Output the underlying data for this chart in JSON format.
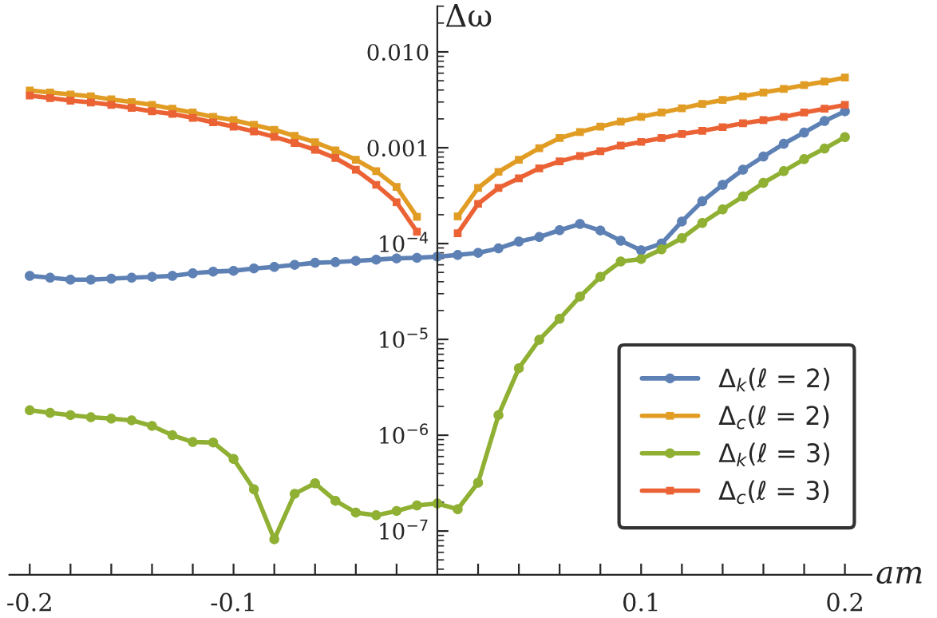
{
  "chart_data": {
    "type": "line",
    "xlabel": "am",
    "ylabel": "Δω",
    "log": "y",
    "x": [
      -0.2,
      -0.19,
      -0.18,
      -0.17,
      -0.16,
      -0.15,
      -0.14,
      -0.13,
      -0.12,
      -0.11,
      -0.1,
      -0.09,
      -0.08,
      -0.07,
      -0.06,
      -0.05,
      -0.04,
      -0.03,
      -0.02,
      -0.01,
      0,
      0.01,
      0.02,
      0.03,
      0.04,
      0.05,
      0.06,
      0.07,
      0.08,
      0.09,
      0.1,
      0.11,
      0.12,
      0.13,
      0.14,
      0.15,
      0.16,
      0.17,
      0.18,
      0.19,
      0.2
    ],
    "xlim": [
      -0.21,
      0.213
    ],
    "ylim": [
      3.5e-08,
      0.03
    ],
    "xticks": [
      -0.2,
      {
        "value": -0.18,
        "label": null
      },
      {
        "value": -0.16,
        "label": null
      },
      {
        "value": -0.14,
        "label": null
      },
      {
        "value": -0.12,
        "label": null
      },
      -0.1,
      {
        "value": -0.08,
        "label": null
      },
      {
        "value": -0.06,
        "label": null
      },
      {
        "value": -0.04,
        "label": null
      },
      {
        "value": -0.02,
        "label": null
      },
      {
        "value": 0.02,
        "label": null
      },
      {
        "value": 0.04,
        "label": null
      },
      {
        "value": 0.06,
        "label": null
      },
      {
        "value": 0.08,
        "label": null
      },
      0.1,
      {
        "value": 0.12,
        "label": null
      },
      {
        "value": 0.14,
        "label": null
      },
      {
        "value": 0.16,
        "label": null
      },
      {
        "value": 0.18,
        "label": null
      },
      0.2
    ],
    "yticks": [
      {
        "value": 1e-07,
        "label": "10$^{−7}$"
      },
      {
        "value": 1e-06,
        "label": "10$^{−6}$"
      },
      {
        "value": 1e-05,
        "label": "10$^{−5}$"
      },
      {
        "value": 0.0001,
        "label": "10$^{−4}$"
      },
      {
        "value": 0.001,
        "label": "0.001"
      },
      {
        "value": 0.01,
        "label": "0.010"
      }
    ],
    "legend": "bottom right",
    "grid": false,
    "series": [
      {
        "name": "Δ$_{k}$(ℓ = 2)",
        "color": "#5e81b5",
        "marker": "circle",
        "values": [
          4.6e-05,
          4.4e-05,
          4.2e-05,
          4.2e-05,
          4.3e-05,
          4.4e-05,
          4.5e-05,
          4.6e-05,
          4.9e-05,
          5.1e-05,
          5.2e-05,
          5.5e-05,
          5.7e-05,
          6e-05,
          6.3e-05,
          6.4e-05,
          6.6e-05,
          6.8e-05,
          7e-05,
          7.1e-05,
          7.3e-05,
          7.6e-05,
          8e-05,
          8.9e-05,
          0.000105,
          0.000117,
          0.000138,
          0.00016,
          0.000137,
          0.000107,
          8.5e-05,
          0.0001,
          0.00017,
          0.000276,
          0.00041,
          0.00059,
          0.00081,
          0.0011,
          0.00144,
          0.0019,
          0.0024
        ]
      },
      {
        "name": "Δ$_{c}$(ℓ = 2)",
        "color": "#e19c24",
        "marker": "square",
        "values": [
          0.00396,
          0.00377,
          0.0036,
          0.00344,
          0.0032,
          0.003,
          0.0028,
          0.00255,
          0.00233,
          0.0021,
          0.00194,
          0.00173,
          0.00154,
          0.00133,
          0.00114,
          0.00094,
          0.00075,
          0.00057,
          0.00039,
          0.00019,
          null,
          0.000192,
          0.00038,
          0.00056,
          0.00075,
          0.00099,
          0.00126,
          0.00146,
          0.00166,
          0.00187,
          0.0021,
          0.00233,
          0.00258,
          0.00287,
          0.00315,
          0.00344,
          0.00377,
          0.0041,
          0.0045,
          0.0049,
          0.0054
        ]
      },
      {
        "name": "Δ$_{k}$(ℓ = 3)",
        "color": "#8fb032",
        "marker": "circle",
        "values": [
          1.82e-06,
          1.71e-06,
          1.62e-06,
          1.54e-06,
          1.49e-06,
          1.43e-06,
          1.25e-06,
          1e-06,
          8.5e-07,
          8.4e-07,
          5.66e-07,
          2.73e-07,
          8.2e-08,
          2.45e-07,
          3.15e-07,
          2.07e-07,
          1.56e-07,
          1.46e-07,
          1.62e-07,
          1.85e-07,
          1.94e-07,
          1.69e-07,
          3.2e-07,
          1.62e-06,
          5e-06,
          9.9e-06,
          1.64e-05,
          2.8e-05,
          4.5e-05,
          6.5e-05,
          6.9e-05,
          8.7e-05,
          0.000114,
          0.000164,
          0.000227,
          0.00031,
          0.00043,
          0.00057,
          0.00076,
          0.00098,
          0.00129
        ]
      },
      {
        "name": "Δ$_{c}$(ℓ = 3)",
        "color": "#eb6235",
        "marker": "square",
        "values": [
          0.0035,
          0.0033,
          0.0031,
          0.00297,
          0.0028,
          0.0026,
          0.0024,
          0.00225,
          0.00205,
          0.00184,
          0.00166,
          0.00148,
          0.0013,
          0.00112,
          0.00095,
          0.00078,
          0.00059,
          0.00041,
          0.00027,
          0.000133,
          null,
          0.000128,
          0.00026,
          0.00038,
          0.00048,
          0.00061,
          0.00072,
          0.00082,
          0.00092,
          0.00105,
          0.00115,
          0.00126,
          0.00139,
          0.0015,
          0.00164,
          0.0018,
          0.00194,
          0.0021,
          0.00233,
          0.00255,
          0.0028
        ]
      }
    ]
  }
}
